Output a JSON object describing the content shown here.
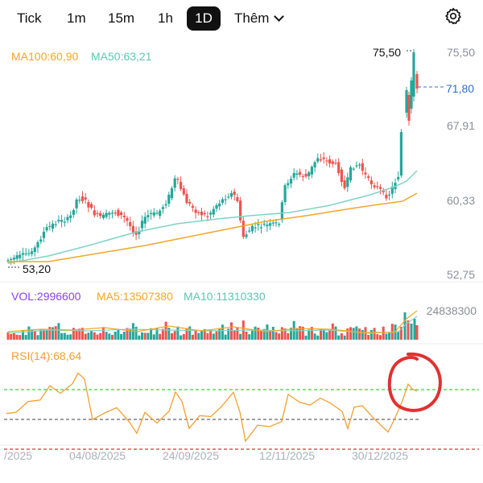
{
  "tabs": [
    {
      "label": "Tick",
      "active": false
    },
    {
      "label": "1m",
      "active": false
    },
    {
      "label": "15m",
      "active": false
    },
    {
      "label": "1h",
      "active": false
    },
    {
      "label": "1D",
      "active": true
    }
  ],
  "more_label": "Thêm",
  "price_panel": {
    "ma100": "MA100:60,90",
    "ma50": "MA50:63,21",
    "high_label": "75,50",
    "low_label": "53,20",
    "current_price": "71,80",
    "y_ticks": [
      "75,50",
      "67,91",
      "60,33",
      "52,75"
    ]
  },
  "volume_panel": {
    "vol": "VOL:2996600",
    "ma5": "MA5:13507380",
    "ma10": "MA10:11310330",
    "max_label": "24838300"
  },
  "rsi_panel": {
    "label": "RSI(14):68,64"
  },
  "x_labels": [
    "/2025",
    "04/08/2025",
    "24/09/2025",
    "12/11/2025",
    "30/12/2025"
  ],
  "colors": {
    "up": "#26a69a",
    "down": "#ef5350",
    "ma100": "#f5a623",
    "ma50": "#7ed3c6",
    "vol_ma5": "#f5a623",
    "vol_ma10": "#7ed3c6",
    "vol_label": "#8a3ffc",
    "rsi_line": "#f0a030",
    "highlight": "#e03131",
    "axis_text": "#8a8f98",
    "current_price": "#2b6fd6"
  },
  "icons": [
    "settings-gear-icon",
    "chevron-down-icon"
  ]
}
